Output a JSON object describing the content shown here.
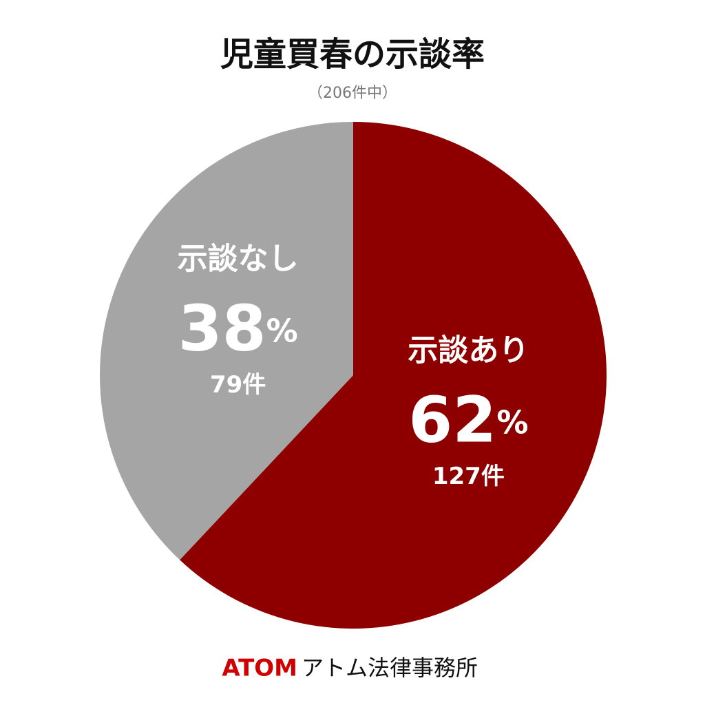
{
  "chart_data": {
    "type": "pie",
    "title": "児童買春の示談率",
    "subtitle": "（206件中）",
    "categories": [
      "示談あり",
      "示談なし"
    ],
    "values": [
      62,
      38
    ],
    "value_labels": [
      "62%",
      "38%"
    ],
    "count_labels": [
      "127件",
      "79件"
    ],
    "colors": [
      "#8e0000",
      "#a5a5a5"
    ],
    "footer": {
      "brand": "ATOM",
      "name": "アトム法律事務所"
    }
  }
}
